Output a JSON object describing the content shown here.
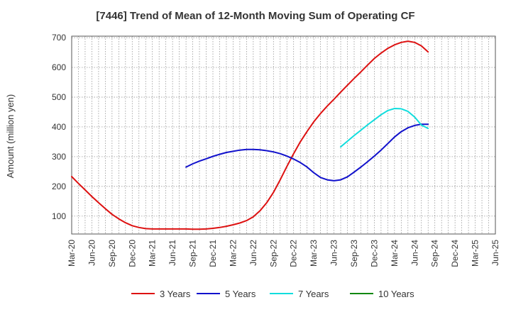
{
  "chart_data": {
    "type": "line",
    "title": "[7446]  Trend of Mean of 12-Month Moving Sum of Operating CF",
    "xlabel": "",
    "ylabel": "Amount (million yen)",
    "ylim": [
      40,
      705
    ],
    "yticks": [
      100,
      200,
      300,
      400,
      500,
      600,
      700
    ],
    "xlim": [
      0,
      63
    ],
    "categories": [
      "Mar-20",
      "Jun-20",
      "Sep-20",
      "Dec-20",
      "Mar-21",
      "Jun-21",
      "Sep-21",
      "Dec-21",
      "Mar-22",
      "Jun-22",
      "Sep-22",
      "Dec-22",
      "Mar-23",
      "Jun-23",
      "Sep-23",
      "Dec-23",
      "Mar-24",
      "Jun-24",
      "Sep-24",
      "Dec-24",
      "Mar-25",
      "Jun-25"
    ],
    "series": [
      {
        "name": "3 Years",
        "color": "#dd1111",
        "x": [
          0,
          1,
          2,
          3,
          4,
          5,
          6,
          7,
          8,
          9,
          10,
          11,
          12,
          13,
          14,
          15,
          16,
          17,
          18,
          19,
          20,
          21,
          22,
          23,
          24,
          25,
          26,
          27,
          28,
          29,
          30,
          31,
          32,
          33,
          34,
          35,
          36,
          37,
          38,
          39,
          40,
          41,
          42,
          43,
          44,
          45,
          46,
          47,
          48,
          49,
          50,
          51,
          52,
          53
        ],
        "values": [
          233,
          210,
          188,
          166,
          145,
          125,
          106,
          91,
          78,
          68,
          62,
          58,
          57,
          57,
          57,
          57,
          57,
          57,
          56,
          56,
          57,
          59,
          62,
          66,
          71,
          77,
          85,
          98,
          118,
          145,
          180,
          222,
          267,
          310,
          350,
          385,
          417,
          445,
          470,
          493,
          517,
          540,
          563,
          585,
          608,
          630,
          648,
          664,
          676,
          684,
          688,
          684,
          672,
          652
        ]
      },
      {
        "name": "5 Years",
        "color": "#1111cc",
        "x": [
          17,
          18,
          19,
          20,
          21,
          22,
          23,
          24,
          25,
          26,
          27,
          28,
          29,
          30,
          31,
          32,
          33,
          34,
          35,
          36,
          37,
          38,
          39,
          40,
          41,
          42,
          43,
          44,
          45,
          46,
          47,
          48,
          49,
          50,
          51,
          52,
          53
        ],
        "values": [
          265,
          276,
          285,
          293,
          301,
          308,
          314,
          318,
          322,
          324,
          324,
          323,
          320,
          316,
          310,
          302,
          292,
          280,
          265,
          246,
          230,
          222,
          219,
          222,
          232,
          248,
          265,
          283,
          302,
          322,
          344,
          366,
          384,
          397,
          405,
          409,
          409
        ]
      },
      {
        "name": "7 Years",
        "color": "#11dddd",
        "x": [
          40,
          41,
          42,
          43,
          44,
          45,
          46,
          47,
          48,
          49,
          50,
          51,
          52,
          53
        ],
        "values": [
          333,
          352,
          371,
          389,
          407,
          424,
          441,
          455,
          462,
          461,
          452,
          433,
          406,
          395
        ]
      },
      {
        "name": "10 Years",
        "color": "#118811",
        "x": [],
        "values": []
      }
    ]
  }
}
